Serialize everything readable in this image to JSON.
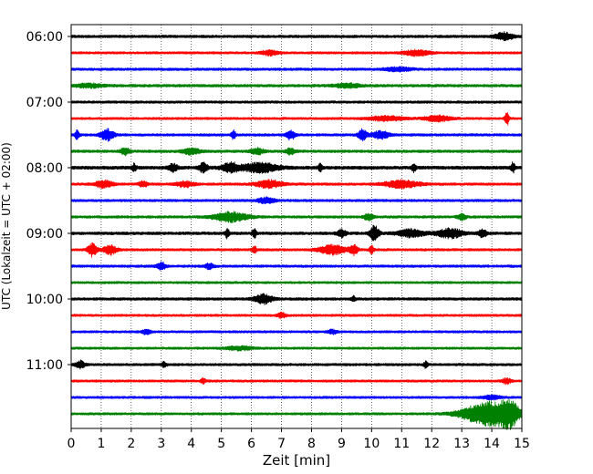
{
  "chart_data": {
    "type": "line",
    "xlabel": "Zeit  [min]",
    "ylabel": "UTC (Lokalzeit = UTC + 02:00)",
    "xlim": [
      0,
      15
    ],
    "xticks": [
      "0",
      "1",
      "2",
      "3",
      "4",
      "5",
      "6",
      "7",
      "8",
      "9",
      "10",
      "11",
      "12",
      "13",
      "14",
      "15"
    ],
    "grid": "vertical dotted lines at each minute",
    "trace_count": 24,
    "trace_interval_minutes": 15,
    "first_trace": "06:00",
    "last_trace": "11:45",
    "yticks": [
      "06:00",
      "07:00",
      "08:00",
      "09:00",
      "10:00",
      "11:00"
    ],
    "colors": [
      "#000000",
      "#ff0000",
      "#0000ff",
      "#008000"
    ],
    "traces": [
      {
        "time": "06:00",
        "color": "#000000",
        "base": 1.5,
        "bursts": [
          [
            14.4,
            0.2,
            4
          ]
        ]
      },
      {
        "time": "06:15",
        "color": "#ff0000",
        "base": 1.3,
        "bursts": [
          [
            6.6,
            0.2,
            2.5
          ],
          [
            11.5,
            0.3,
            3
          ]
        ]
      },
      {
        "time": "06:30",
        "color": "#0000ff",
        "base": 1.4,
        "bursts": [
          [
            10.9,
            0.3,
            2
          ]
        ]
      },
      {
        "time": "06:45",
        "color": "#008000",
        "base": 1.5,
        "bursts": [
          [
            0.6,
            0.3,
            2
          ],
          [
            9.2,
            0.3,
            2
          ]
        ]
      },
      {
        "time": "07:00",
        "color": "#000000",
        "base": 1.4,
        "bursts": []
      },
      {
        "time": "07:15",
        "color": "#ff0000",
        "base": 1.3,
        "bursts": [
          [
            10.5,
            0.4,
            2.5
          ],
          [
            12.2,
            0.3,
            3
          ],
          [
            14.5,
            0.05,
            8
          ]
        ]
      },
      {
        "time": "07:30",
        "color": "#0000ff",
        "base": 1.4,
        "bursts": [
          [
            0.2,
            0.05,
            6
          ],
          [
            1.2,
            0.15,
            6
          ],
          [
            5.4,
            0.05,
            5
          ],
          [
            7.3,
            0.1,
            5
          ],
          [
            9.7,
            0.1,
            6
          ],
          [
            10.3,
            0.2,
            4
          ]
        ]
      },
      {
        "time": "07:45",
        "color": "#008000",
        "base": 1.5,
        "bursts": [
          [
            1.8,
            0.1,
            4
          ],
          [
            4.0,
            0.2,
            3
          ],
          [
            6.2,
            0.15,
            3
          ],
          [
            7.3,
            0.1,
            3
          ]
        ]
      },
      {
        "time": "08:00",
        "color": "#000000",
        "base": 1.8,
        "bursts": [
          [
            2.1,
            0.05,
            4
          ],
          [
            3.4,
            0.1,
            4
          ],
          [
            4.4,
            0.1,
            5
          ],
          [
            5.3,
            0.2,
            5
          ],
          [
            6.3,
            0.4,
            5
          ],
          [
            8.3,
            0.05,
            4
          ],
          [
            11.4,
            0.05,
            4
          ],
          [
            14.7,
            0.05,
            5
          ]
        ]
      },
      {
        "time": "08:15",
        "color": "#ff0000",
        "base": 1.4,
        "bursts": [
          [
            1.1,
            0.2,
            4
          ],
          [
            2.4,
            0.1,
            3
          ],
          [
            3.8,
            0.2,
            3
          ],
          [
            6.6,
            0.3,
            4
          ],
          [
            11.0,
            0.4,
            4
          ]
        ]
      },
      {
        "time": "08:30",
        "color": "#0000ff",
        "base": 1.4,
        "bursts": [
          [
            6.5,
            0.2,
            3
          ]
        ]
      },
      {
        "time": "08:45",
        "color": "#008000",
        "base": 1.4,
        "bursts": [
          [
            5.3,
            0.4,
            5
          ],
          [
            9.9,
            0.1,
            4
          ],
          [
            13.0,
            0.1,
            3
          ]
        ]
      },
      {
        "time": "09:00",
        "color": "#000000",
        "base": 1.6,
        "bursts": [
          [
            5.2,
            0.05,
            5
          ],
          [
            6.1,
            0.05,
            5
          ],
          [
            9.0,
            0.1,
            4
          ],
          [
            10.1,
            0.1,
            8
          ],
          [
            11.3,
            0.3,
            4
          ],
          [
            12.6,
            0.3,
            5
          ],
          [
            13.7,
            0.1,
            4
          ]
        ]
      },
      {
        "time": "09:15",
        "color": "#ff0000",
        "base": 1.4,
        "bursts": [
          [
            0.7,
            0.1,
            7
          ],
          [
            1.3,
            0.15,
            5
          ],
          [
            6.1,
            0.05,
            4
          ],
          [
            8.7,
            0.3,
            5
          ],
          [
            9.4,
            0.1,
            5
          ],
          [
            10.0,
            0.05,
            4
          ]
        ]
      },
      {
        "time": "09:30",
        "color": "#0000ff",
        "base": 1.4,
        "bursts": [
          [
            3.0,
            0.1,
            4
          ],
          [
            4.6,
            0.1,
            3
          ]
        ]
      },
      {
        "time": "09:45",
        "color": "#008000",
        "base": 1.3,
        "bursts": []
      },
      {
        "time": "10:00",
        "color": "#000000",
        "base": 1.5,
        "bursts": [
          [
            6.4,
            0.2,
            5
          ],
          [
            9.4,
            0.05,
            3
          ]
        ]
      },
      {
        "time": "10:15",
        "color": "#ff0000",
        "base": 1.3,
        "bursts": [
          [
            7.0,
            0.1,
            2.5
          ]
        ]
      },
      {
        "time": "10:30",
        "color": "#0000ff",
        "base": 1.3,
        "bursts": [
          [
            2.5,
            0.1,
            2.5
          ],
          [
            8.7,
            0.1,
            2.5
          ]
        ]
      },
      {
        "time": "10:45",
        "color": "#008000",
        "base": 1.3,
        "bursts": [
          [
            5.6,
            0.3,
            2
          ]
        ]
      },
      {
        "time": "11:00",
        "color": "#000000",
        "base": 1.4,
        "bursts": [
          [
            0.3,
            0.1,
            4
          ],
          [
            3.1,
            0.05,
            3
          ],
          [
            11.8,
            0.05,
            3
          ]
        ]
      },
      {
        "time": "11:15",
        "color": "#ff0000",
        "base": 1.3,
        "bursts": [
          [
            4.4,
            0.05,
            3
          ],
          [
            14.5,
            0.1,
            3
          ]
        ]
      },
      {
        "time": "11:30",
        "color": "#0000ff",
        "base": 1.3,
        "bursts": [
          [
            14.0,
            0.2,
            2
          ]
        ]
      },
      {
        "time": "11:45",
        "color": "#008000",
        "base": 1.3,
        "bursts": [
          [
            13.9,
            0.6,
            13
          ],
          [
            14.6,
            0.2,
            10
          ]
        ]
      }
    ]
  }
}
